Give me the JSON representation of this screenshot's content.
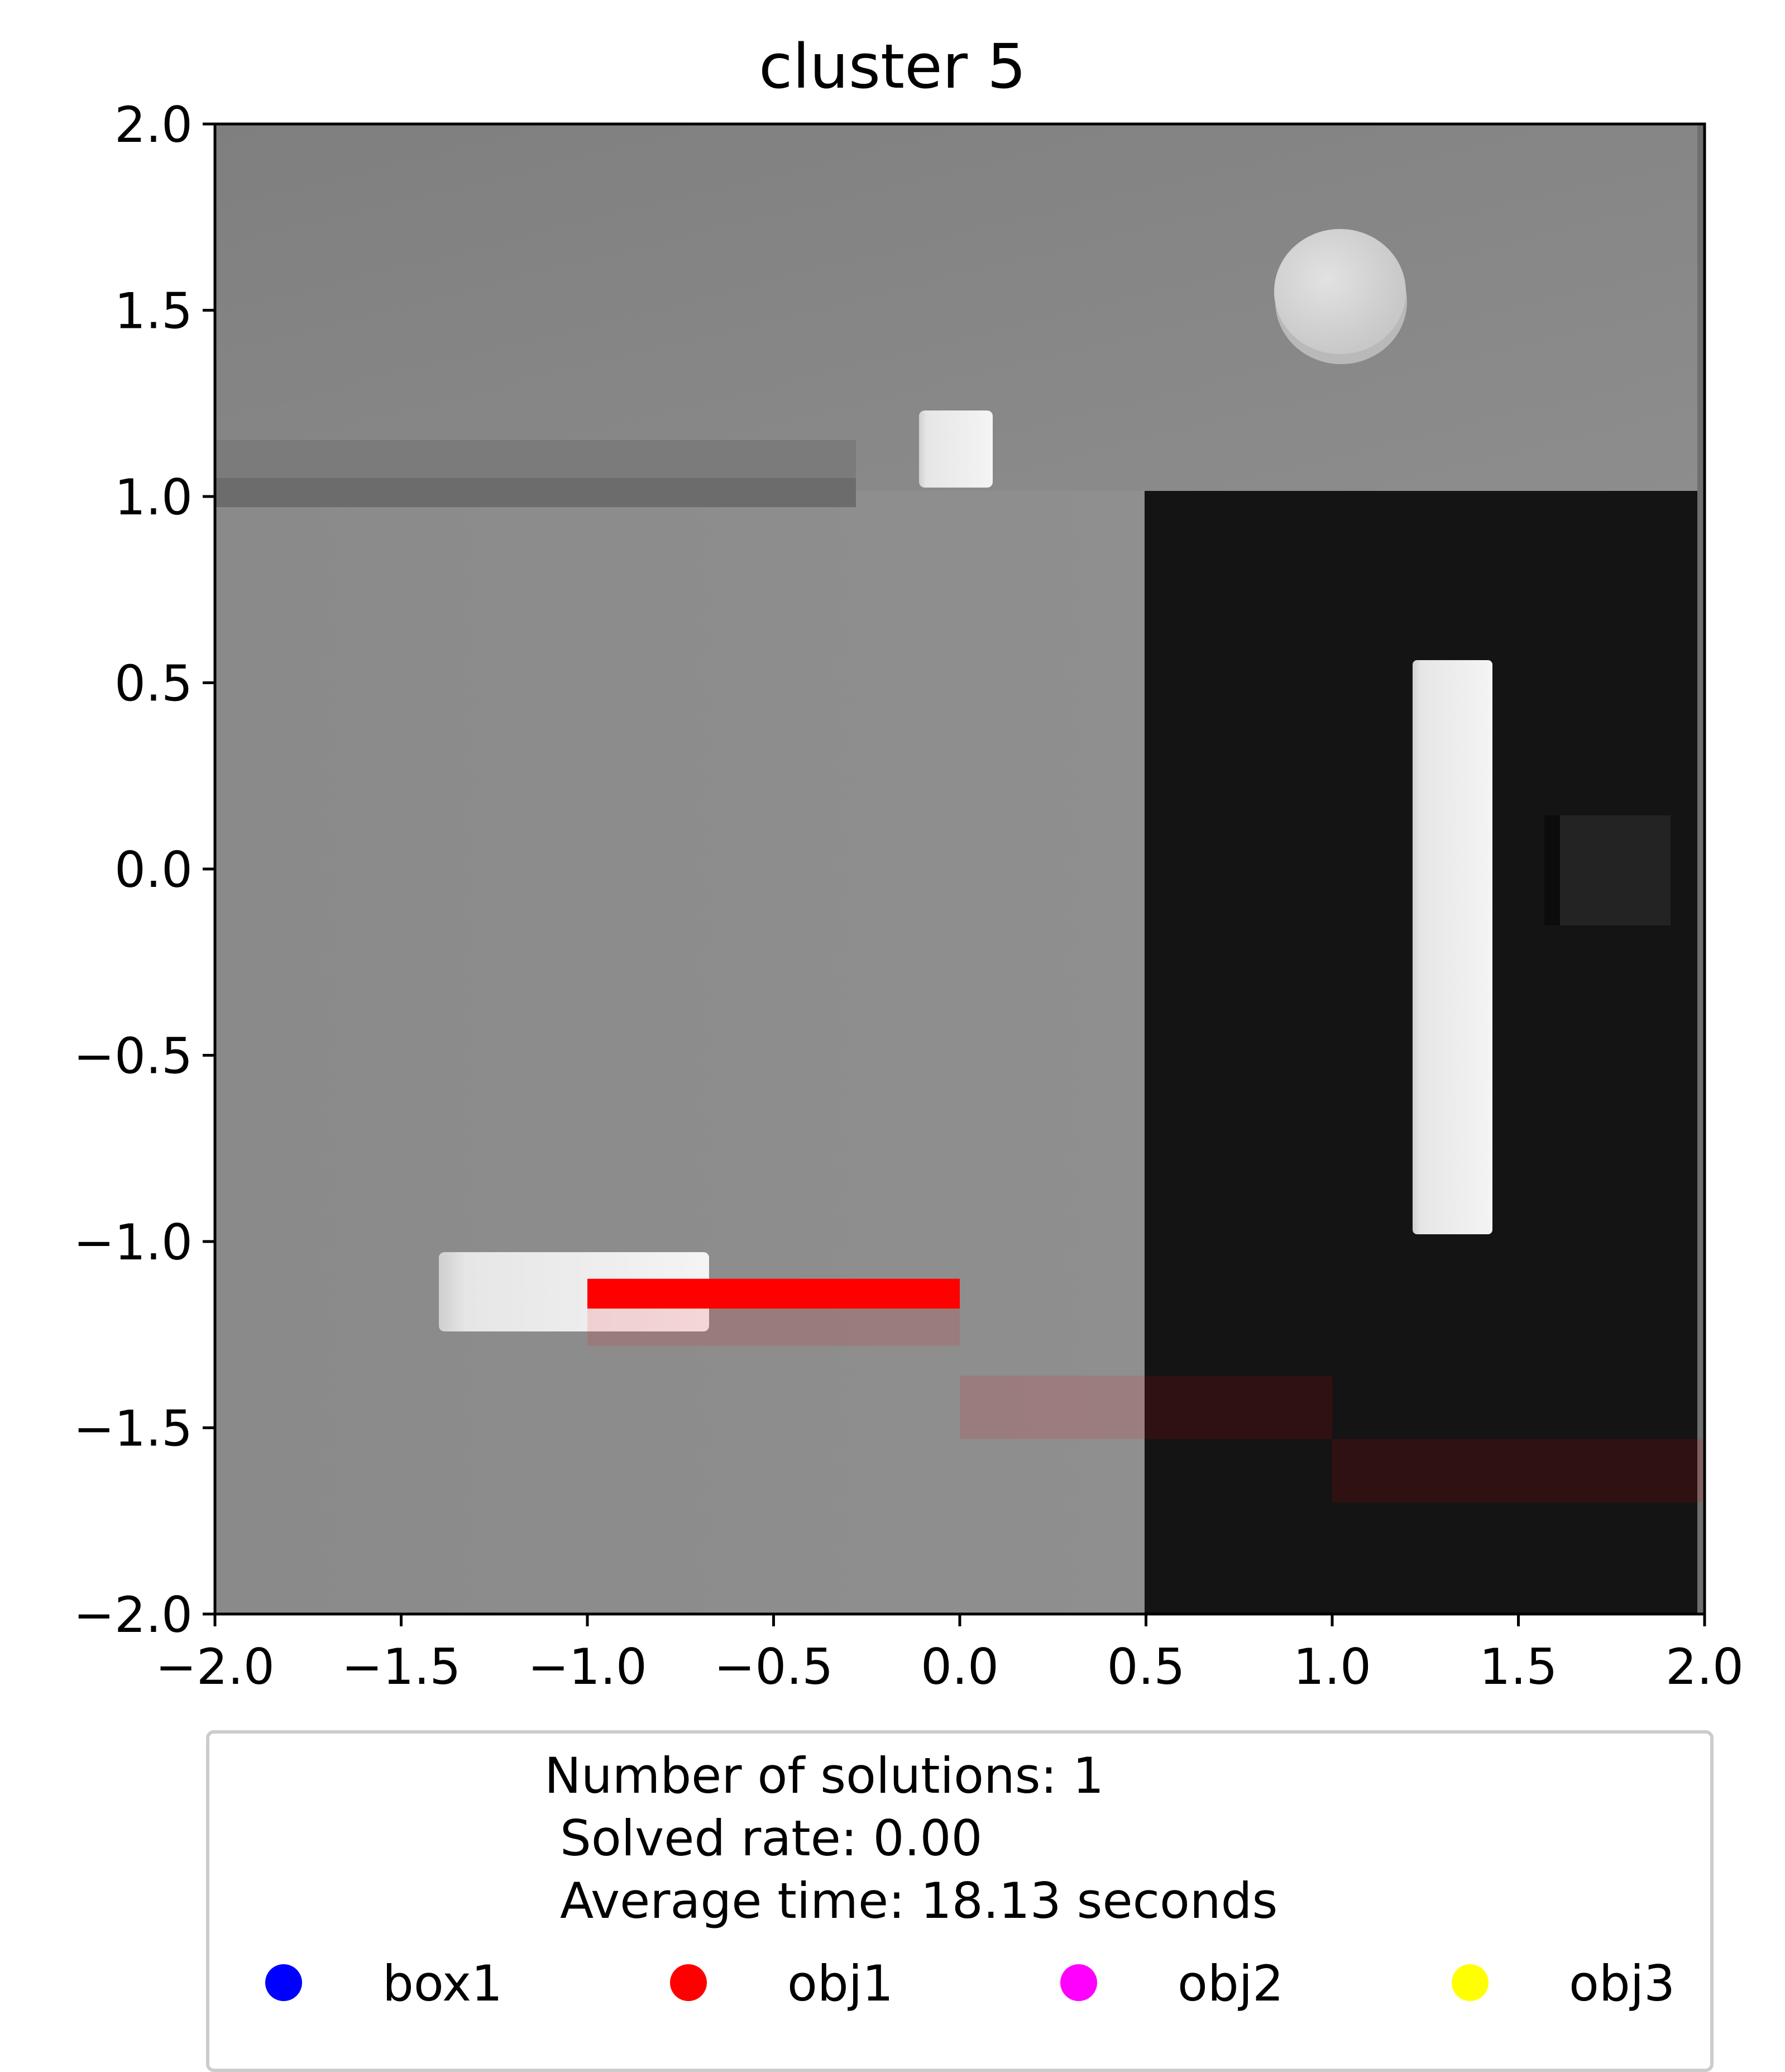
{
  "chart_data": {
    "type": "scatter",
    "title": "cluster 5",
    "xlim": [
      -2.0,
      2.0
    ],
    "ylim": [
      -2.0,
      2.0
    ],
    "xticks": [
      "−2.0",
      "−1.5",
      "−1.0",
      "−0.5",
      "0.0",
      "0.5",
      "1.0",
      "1.5",
      "2.0"
    ],
    "yticks": [
      "2.0",
      "1.5",
      "1.0",
      "0.5",
      "0.0",
      "−0.5",
      "−1.0",
      "−1.5",
      "−2.0"
    ],
    "grid": false,
    "background": "rendered grayscale top-down scene image",
    "overlays": [
      {
        "series": "obj1",
        "x0": -1.0,
        "x1": 0.0,
        "y0": -1.18,
        "y1": -1.1,
        "color": "#ff0000",
        "opacity": 1.0
      },
      {
        "series": "obj1",
        "x0": -1.0,
        "x1": 0.0,
        "y0": -1.28,
        "y1": -1.18,
        "color": "#ff0000",
        "opacity": 0.12
      },
      {
        "series": "obj1",
        "x0": 0.0,
        "x1": 1.0,
        "y0": -1.53,
        "y1": -1.36,
        "color": "#ff0000",
        "opacity": 0.12
      },
      {
        "series": "obj1",
        "x0": 1.0,
        "x1": 2.0,
        "y0": -1.7,
        "y1": -1.53,
        "color": "#ff0000",
        "opacity": 0.12
      }
    ],
    "legend": {
      "placement": "below",
      "text_lines": [
        "Number of solutions: 1",
        " Solved rate: 0.00",
        " Average time: 18.13 seconds"
      ],
      "entries": [
        {
          "name": "box1",
          "color": "#0000ff"
        },
        {
          "name": "obj1",
          "color": "#ff0000"
        },
        {
          "name": "obj2",
          "color": "#ff00ff"
        },
        {
          "name": "obj3",
          "color": "#ffff00"
        }
      ]
    }
  }
}
